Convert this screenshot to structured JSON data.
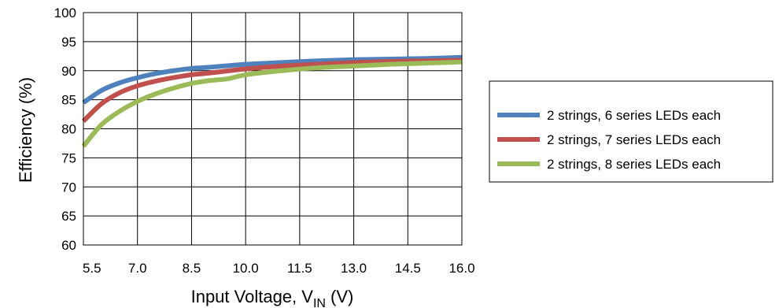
{
  "chart_data": {
    "type": "line",
    "title": "",
    "xlabel": "Input Voltage, VIN (V)",
    "xlabel_parts": {
      "main": "Input Voltage, V",
      "subscript": "IN",
      "suffix": " (V)"
    },
    "ylabel": "Efficiency (%)",
    "xlim": [
      5.5,
      16.0
    ],
    "ylim": [
      60,
      100
    ],
    "x_ticks": [
      "5.5",
      "7.0",
      "8.5",
      "10.0",
      "11.5",
      "13.0",
      "14.5",
      "16.0"
    ],
    "y_ticks": [
      "60",
      "65",
      "70",
      "75",
      "80",
      "85",
      "90",
      "95",
      "100"
    ],
    "grid": true,
    "legend_position": "right",
    "series": [
      {
        "name": "2 strings, 6 series LEDs each",
        "color": "#4f81bd",
        "x": [
          5.5,
          6.0,
          6.5,
          7.0,
          7.5,
          8.0,
          8.5,
          9.0,
          10.0,
          11.0,
          12.0,
          13.0,
          14.0,
          15.0,
          16.0
        ],
        "y": [
          84.5,
          86.6,
          87.9,
          88.8,
          89.5,
          90.0,
          90.4,
          90.6,
          91.1,
          91.4,
          91.7,
          91.9,
          92.0,
          92.1,
          92.3
        ]
      },
      {
        "name": "2 strings, 7 series LEDs each",
        "color": "#c0504d",
        "x": [
          5.5,
          6.0,
          6.5,
          7.0,
          7.5,
          8.0,
          8.5,
          9.0,
          10.0,
          11.0,
          12.0,
          13.0,
          14.0,
          15.0,
          16.0
        ],
        "y": [
          81.3,
          84.3,
          86.2,
          87.4,
          88.2,
          88.8,
          89.3,
          89.6,
          90.3,
          90.8,
          91.1,
          91.4,
          91.6,
          91.7,
          91.8
        ]
      },
      {
        "name": "2 strings, 8 series LEDs each",
        "color": "#9bbb59",
        "x": [
          5.5,
          6.0,
          6.5,
          7.0,
          7.5,
          8.0,
          8.5,
          9.0,
          9.5,
          10.0,
          11.0,
          12.0,
          13.0,
          14.0,
          15.0,
          16.0
        ],
        "y": [
          77.0,
          80.7,
          83.0,
          84.7,
          86.0,
          87.0,
          87.8,
          88.3,
          88.6,
          89.3,
          90.0,
          90.5,
          90.8,
          91.1,
          91.3,
          91.5
        ]
      }
    ]
  }
}
